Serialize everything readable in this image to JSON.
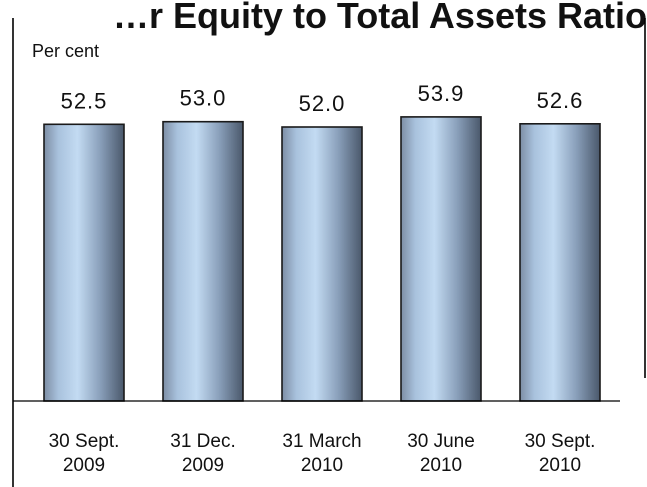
{
  "chart_data": {
    "type": "bar",
    "title": "…r Equity to Total Assets Ratio",
    "ylabel": "Per cent",
    "categories": [
      [
        "30 Sept.",
        "2009"
      ],
      [
        "31 Dec.",
        "2009"
      ],
      [
        "31 March",
        "2010"
      ],
      [
        "30 June",
        "2010"
      ],
      [
        "30 Sept.",
        "2010"
      ]
    ],
    "values": [
      52.5,
      53.0,
      52.0,
      53.9,
      52.6
    ],
    "value_labels": [
      "52.5",
      "53.0",
      "52.0",
      "53.9",
      "52.6"
    ],
    "ylim": [
      0,
      60
    ],
    "grid": false,
    "legend": "none",
    "colors": {
      "bar_edge": "#7f97b3",
      "bar_mid": "#b9d2ec",
      "bar_dark": "#4b5a6e",
      "outline": "#1a1a1a"
    }
  }
}
